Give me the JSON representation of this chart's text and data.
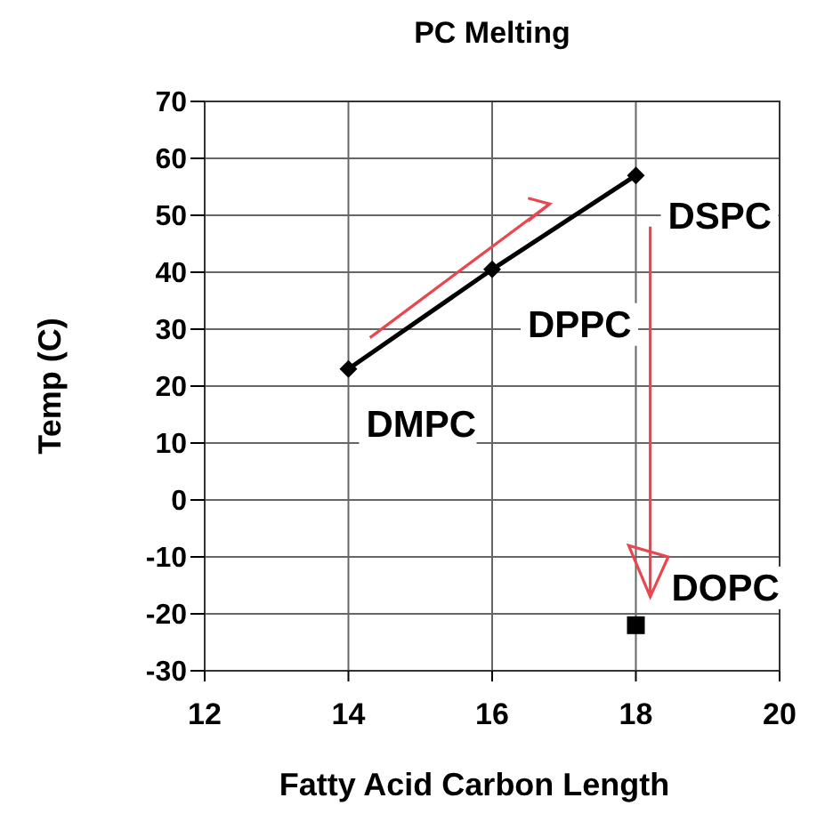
{
  "chart_data": {
    "type": "line",
    "title": "PC Melting",
    "xlabel": "Fatty Acid Carbon Length",
    "ylabel": "Temp (C)",
    "xlim": [
      12,
      20
    ],
    "xticks": [
      12,
      14,
      16,
      18,
      20
    ],
    "ylim": [
      -30,
      70
    ],
    "yticks": [
      -30,
      -20,
      -10,
      0,
      10,
      20,
      30,
      40,
      50,
      60,
      70
    ],
    "grid": true,
    "series": [
      {
        "type": "line",
        "color": "#000000",
        "marker": "diamond",
        "x": [
          14,
          16,
          18
        ],
        "values": [
          23,
          40.5,
          57
        ]
      },
      {
        "type": "scatter",
        "color": "#000000",
        "marker": "square",
        "x": [
          18
        ],
        "values": [
          -22
        ]
      }
    ],
    "annotations": [
      {
        "text": "DMPC",
        "x": 14,
        "y": 23
      },
      {
        "text": "DPPC",
        "x": 16,
        "y": 40.5
      },
      {
        "text": "DSPC",
        "x": 18,
        "y": 57
      },
      {
        "text": "DOPC",
        "x": 18,
        "y": -22
      }
    ]
  }
}
